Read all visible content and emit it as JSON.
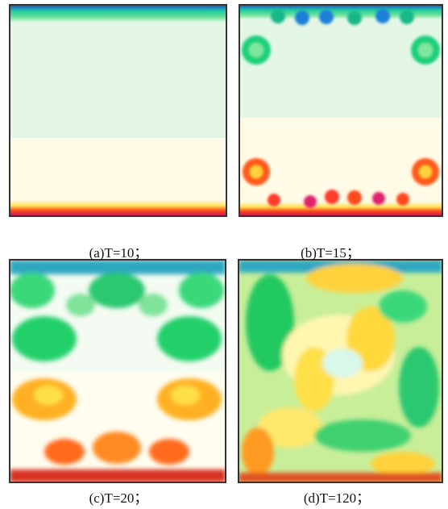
{
  "figure": {
    "panels": [
      {
        "caption": "(a)T=10；"
      },
      {
        "caption": "(b)T=15；"
      },
      {
        "caption": "(c)T=20；"
      },
      {
        "caption": "(d)T=120；"
      }
    ]
  }
}
